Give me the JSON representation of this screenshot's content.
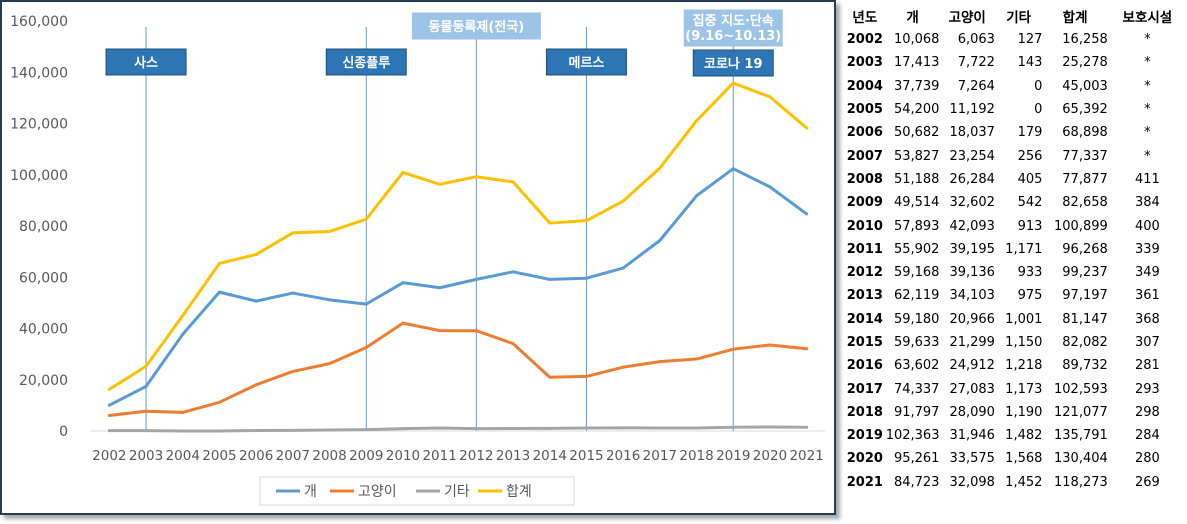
{
  "chart_data": {
    "type": "line",
    "x": [
      "2002",
      "2003",
      "2004",
      "2005",
      "2006",
      "2007",
      "2008",
      "2009",
      "2010",
      "2011",
      "2012",
      "2013",
      "2014",
      "2015",
      "2016",
      "2017",
      "2018",
      "2019",
      "2020",
      "2021"
    ],
    "ylim": [
      0,
      160000
    ],
    "yticks": [
      "0",
      "20,000",
      "40,000",
      "60,000",
      "80,000",
      "100,000",
      "120,000",
      "140,000",
      "160,000"
    ],
    "series": [
      {
        "name": "개",
        "color": "#5b9bd5",
        "values": [
          10068,
          17413,
          37739,
          54200,
          50682,
          53827,
          51188,
          49514,
          57893,
          55902,
          59168,
          62119,
          59180,
          59633,
          63602,
          74337,
          91797,
          102363,
          95261,
          84723
        ]
      },
      {
        "name": "고양이",
        "color": "#ed7d31",
        "values": [
          6063,
          7722,
          7264,
          11192,
          18037,
          23254,
          26284,
          32602,
          42093,
          39195,
          39136,
          34103,
          20966,
          21299,
          24912,
          27083,
          28090,
          31946,
          33575,
          32098
        ]
      },
      {
        "name": "기타",
        "color": "#a5a5a5",
        "values": [
          127,
          143,
          0,
          0,
          179,
          256,
          405,
          542,
          913,
          1171,
          933,
          975,
          1001,
          1150,
          1218,
          1173,
          1190,
          1482,
          1568,
          1452
        ]
      },
      {
        "name": "합계",
        "color": "#ffc000",
        "values": [
          16258,
          25278,
          45003,
          65392,
          68898,
          77337,
          77877,
          82658,
          100899,
          96268,
          99237,
          97197,
          81147,
          82082,
          89732,
          102593,
          121077,
          135791,
          130404,
          118273
        ]
      }
    ],
    "events": [
      {
        "year": "2003",
        "label": "사스",
        "line2": ""
      },
      {
        "year": "2009",
        "label": "신종플루",
        "line2": ""
      },
      {
        "year": "2012",
        "label": "동물등록제(전국)",
        "line2": ""
      },
      {
        "year": "2015",
        "label": "메르스",
        "line2": ""
      },
      {
        "year": "2019",
        "label": "코로나 19",
        "line2": ""
      },
      {
        "year": "2019",
        "label": "집중 지도·단속",
        "line2": "(9.16~10.13)"
      }
    ],
    "legend_position": "bottom",
    "grid": false
  },
  "table": {
    "headers": [
      "년도",
      "개",
      "고양이",
      "기타",
      "합계",
      "보호시설"
    ],
    "rows": [
      [
        "2002",
        "10,068",
        "6,063",
        "127",
        "16,258",
        "*"
      ],
      [
        "2003",
        "17,413",
        "7,722",
        "143",
        "25,278",
        "*"
      ],
      [
        "2004",
        "37,739",
        "7,264",
        "0",
        "45,003",
        "*"
      ],
      [
        "2005",
        "54,200",
        "11,192",
        "0",
        "65,392",
        "*"
      ],
      [
        "2006",
        "50,682",
        "18,037",
        "179",
        "68,898",
        "*"
      ],
      [
        "2007",
        "53,827",
        "23,254",
        "256",
        "77,337",
        "*"
      ],
      [
        "2008",
        "51,188",
        "26,284",
        "405",
        "77,877",
        "411"
      ],
      [
        "2009",
        "49,514",
        "32,602",
        "542",
        "82,658",
        "384"
      ],
      [
        "2010",
        "57,893",
        "42,093",
        "913",
        "100,899",
        "400"
      ],
      [
        "2011",
        "55,902",
        "39,195",
        "1,171",
        "96,268",
        "339"
      ],
      [
        "2012",
        "59,168",
        "39,136",
        "933",
        "99,237",
        "349"
      ],
      [
        "2013",
        "62,119",
        "34,103",
        "975",
        "97,197",
        "361"
      ],
      [
        "2014",
        "59,180",
        "20,966",
        "1,001",
        "81,147",
        "368"
      ],
      [
        "2015",
        "59,633",
        "21,299",
        "1,150",
        "82,082",
        "307"
      ],
      [
        "2016",
        "63,602",
        "24,912",
        "1,218",
        "89,732",
        "281"
      ],
      [
        "2017",
        "74,337",
        "27,083",
        "1,173",
        "102,593",
        "293"
      ],
      [
        "2018",
        "91,797",
        "28,090",
        "1,190",
        "121,077",
        "298"
      ],
      [
        "2019",
        "102,363",
        "31,946",
        "1,482",
        "135,791",
        "284"
      ],
      [
        "2020",
        "95,261",
        "33,575",
        "1,568",
        "130,404",
        "280"
      ],
      [
        "2021",
        "84,723",
        "32,098",
        "1,452",
        "118,273",
        "269"
      ]
    ]
  }
}
